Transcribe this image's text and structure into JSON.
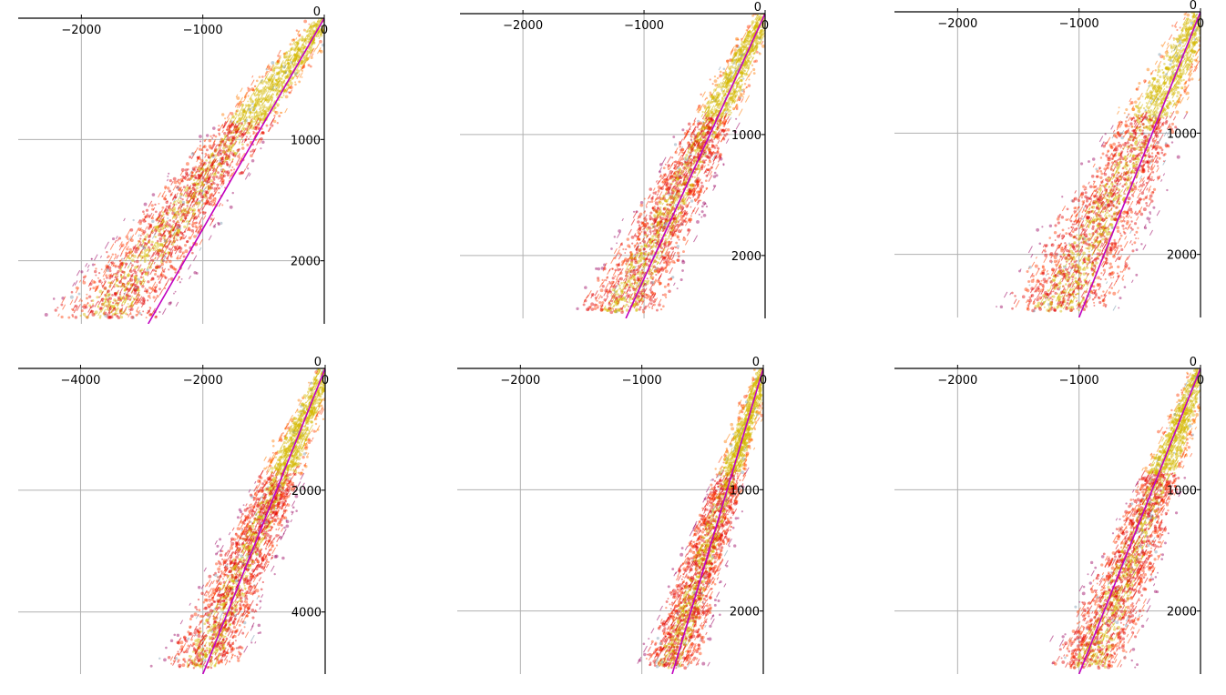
{
  "chart_data": [
    {
      "type": "scatter",
      "xlim": [
        -2520,
        0
      ],
      "ylim": [
        -2520,
        0
      ],
      "xticks": [
        -2000,
        -1000,
        0
      ],
      "xtick_labels": [
        "−2000",
        "−1000",
        "0"
      ],
      "yticks": [
        0,
        -1000,
        -2000
      ],
      "ytick_labels": [
        "0",
        "1000",
        "2000"
      ],
      "grid": true,
      "reference_line": {
        "x": [
          0,
          -1450
        ],
        "y": [
          0,
          -2520
        ]
      },
      "density": {
        "slope": 1.35,
        "spread": 0.28
      }
    },
    {
      "type": "scatter",
      "xlim": [
        -2520,
        0
      ],
      "ylim": [
        -2520,
        0
      ],
      "xticks": [
        -2000,
        -1000,
        0
      ],
      "xtick_labels": [
        "−2000",
        "−1000",
        "0"
      ],
      "yticks": [
        0,
        -1000,
        -2000
      ],
      "ytick_labels": [
        "0",
        "1000",
        "2000"
      ],
      "grid": true,
      "reference_line": {
        "x": [
          0,
          -1150
        ],
        "y": [
          0,
          -2520
        ]
      },
      "density": {
        "slope": 2.05,
        "spread": 0.22
      }
    },
    {
      "type": "scatter",
      "xlim": [
        -2520,
        0
      ],
      "ylim": [
        -2520,
        0
      ],
      "xticks": [
        -2000,
        -1000,
        0
      ],
      "xtick_labels": [
        "−2000",
        "−1000",
        "0"
      ],
      "yticks": [
        0,
        -1000,
        -2000
      ],
      "ytick_labels": [
        "0",
        "1000",
        "2000"
      ],
      "grid": true,
      "reference_line": {
        "x": [
          0,
          -1000
        ],
        "y": [
          0,
          -2520
        ]
      },
      "density": {
        "slope": 2.1,
        "spread": 0.3
      }
    },
    {
      "type": "scatter",
      "xlim": [
        -5020,
        0
      ],
      "ylim": [
        -5020,
        0
      ],
      "xticks": [
        -4000,
        -2000,
        0
      ],
      "xtick_labels": [
        "−4000",
        "−2000",
        "0"
      ],
      "yticks": [
        0,
        -2000,
        -4000
      ],
      "ytick_labels": [
        "0",
        "2000",
        "4000"
      ],
      "grid": true,
      "reference_line": {
        "x": [
          0,
          -2000
        ],
        "y": [
          0,
          -5020
        ]
      },
      "density": {
        "slope": 2.4,
        "spread": 0.2
      }
    },
    {
      "type": "scatter",
      "xlim": [
        -2520,
        0
      ],
      "ylim": [
        -2520,
        0
      ],
      "xticks": [
        -2000,
        -1000,
        0
      ],
      "xtick_labels": [
        "−2000",
        "−1000",
        "0"
      ],
      "yticks": [
        0,
        -1000,
        -2000
      ],
      "ytick_labels": [
        "0",
        "1000",
        "2000"
      ],
      "grid": true,
      "reference_line": {
        "x": [
          0,
          -750
        ],
        "y": [
          0,
          -2520
        ]
      },
      "density": {
        "slope": 3.2,
        "spread": 0.15
      }
    },
    {
      "type": "scatter",
      "xlim": [
        -2520,
        0
      ],
      "ylim": [
        -2520,
        0
      ],
      "xticks": [
        -2000,
        -1000,
        0
      ],
      "xtick_labels": [
        "−2000",
        "−1000",
        "0"
      ],
      "yticks": [
        0,
        -1000,
        -2000
      ],
      "ytick_labels": [
        "0",
        "1000",
        "2000"
      ],
      "grid": true,
      "reference_line": {
        "x": [
          0,
          -1000
        ],
        "y": [
          0,
          -2520
        ]
      },
      "density": {
        "slope": 2.7,
        "spread": 0.2
      }
    }
  ],
  "colors": {
    "grid": "#b0b0b0",
    "axis": "#000000",
    "reference_line": "#c000c0",
    "point_palette": [
      "#e00000",
      "#ff3a00",
      "#ff7a00",
      "#d4b800",
      "#9a0060",
      "#7a9ab0"
    ]
  }
}
